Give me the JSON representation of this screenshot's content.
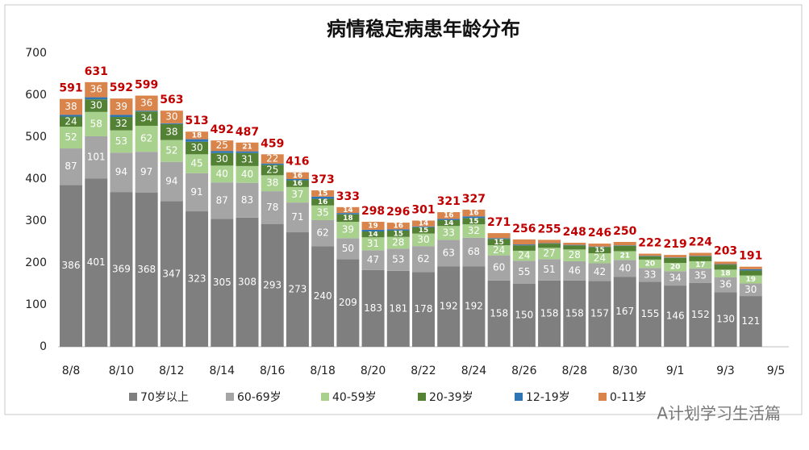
{
  "chart_data": {
    "type": "stacked_bar",
    "title": "病情稳定病患年龄分布",
    "categories": [
      "8/8",
      null,
      "8/10",
      null,
      "8/12",
      null,
      "8/14",
      null,
      "8/16",
      null,
      "8/18",
      null,
      "8/20",
      null,
      "8/22",
      null,
      "8/24",
      null,
      "8/26",
      null,
      "8/28",
      null,
      "8/30",
      null,
      "9/1",
      null,
      "9/3",
      null,
      "9/5"
    ],
    "series": [
      {
        "name": "70岁以上",
        "color": "#7f7f7f",
        "values": [
          386,
          401,
          369,
          368,
          347,
          323,
          305,
          308,
          293,
          273,
          240,
          209,
          183,
          181,
          178,
          192,
          192,
          158,
          150,
          158,
          158,
          157,
          167,
          155,
          146,
          152,
          130,
          121,
          null
        ]
      },
      {
        "name": "60-69岁",
        "color": "#a5a5a5",
        "values": [
          87,
          101,
          94,
          97,
          94,
          91,
          87,
          83,
          78,
          71,
          62,
          50,
          47,
          53,
          62,
          63,
          68,
          60,
          55,
          51,
          46,
          42,
          40,
          33,
          34,
          35,
          36,
          30,
          null
        ]
      },
      {
        "name": "40-59岁",
        "color": "#a9d18e",
        "values": [
          52,
          58,
          53,
          62,
          52,
          45,
          40,
          40,
          38,
          37,
          35,
          39,
          31,
          28,
          30,
          33,
          32,
          24,
          24,
          27,
          28,
          24,
          21,
          20,
          20,
          17,
          18,
          19,
          null
        ]
      },
      {
        "name": "20-39岁",
        "color": "#548235",
        "values": [
          24,
          30,
          32,
          34,
          38,
          30,
          30,
          31,
          25,
          16,
          16,
          18,
          14,
          15,
          15,
          14,
          15,
          15,
          13,
          10,
          10,
          15,
          13,
          8,
          12,
          12,
          12,
          12,
          null
        ]
      },
      {
        "name": "12-19岁",
        "color": "#2e75b6",
        "values": [
          4,
          5,
          5,
          2,
          2,
          6,
          5,
          4,
          3,
          3,
          5,
          3,
          4,
          3,
          2,
          3,
          4,
          2,
          2,
          1,
          1,
          1,
          1,
          1,
          1,
          1,
          1,
          3,
          null
        ]
      },
      {
        "name": "0-11岁",
        "color": "#d9844a",
        "values": [
          38,
          36,
          39,
          36,
          30,
          18,
          25,
          21,
          22,
          16,
          15,
          14,
          19,
          16,
          14,
          16,
          16,
          12,
          12,
          8,
          5,
          7,
          8,
          5,
          6,
          7,
          6,
          6,
          null
        ]
      }
    ],
    "totals": [
      591,
      631,
      592,
      599,
      563,
      513,
      492,
      487,
      459,
      416,
      373,
      333,
      298,
      296,
      301,
      321,
      327,
      271,
      256,
      255,
      248,
      246,
      250,
      222,
      219,
      224,
      203,
      191,
      null
    ],
    "ylim": [
      0,
      700
    ],
    "yticks": [
      0,
      100,
      200,
      300,
      400,
      500,
      600,
      700
    ],
    "grid": false,
    "legend": "bottom",
    "watermark": "A计划学习生活篇"
  }
}
